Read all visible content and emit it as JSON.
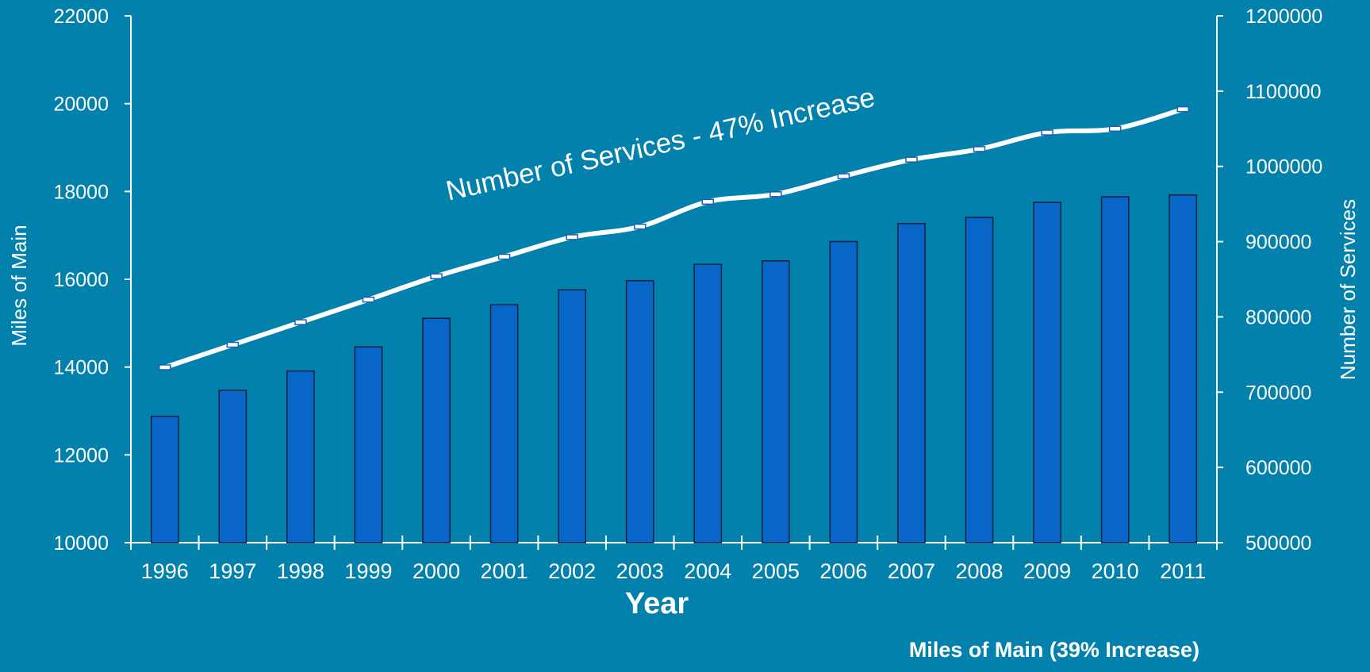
{
  "chart_data": {
    "type": "bar",
    "categories": [
      "1996",
      "1997",
      "1998",
      "1999",
      "2000",
      "2001",
      "2002",
      "2003",
      "2004",
      "2005",
      "2006",
      "2007",
      "2008",
      "2009",
      "2010",
      "2011"
    ],
    "series": [
      {
        "name": "Miles of Main (39% Increase)",
        "kind": "bar",
        "axis": "left",
        "values": [
          12880,
          13470,
          13910,
          14460,
          15110,
          15420,
          15760,
          15970,
          16340,
          16420,
          16860,
          17270,
          17410,
          17750,
          17880,
          17920
        ]
      },
      {
        "name": "Number of Services - 47% Increase",
        "kind": "line",
        "axis": "right",
        "values": [
          733000,
          763000,
          793000,
          823000,
          854000,
          880000,
          906000,
          920000,
          953000,
          963000,
          987000,
          1009000,
          1023000,
          1045000,
          1050000,
          1076000
        ]
      }
    ],
    "xlabel": "Year",
    "ylabel": "Miles of Main",
    "ylabel_right": "Number of Services",
    "ylim": [
      10000,
      22000
    ],
    "ylim_right": [
      500000,
      1200000
    ],
    "yticks": [
      "10000",
      "12000",
      "14000",
      "16000",
      "18000",
      "20000",
      "22000"
    ],
    "yticks_right": [
      "500000",
      "600000",
      "700000",
      "800000",
      "900000",
      "1000000",
      "1100000",
      "1200000"
    ],
    "annotation": "Number of Services - 47% Increase",
    "footer_label": "Miles of Main (39% Increase)",
    "grid": false,
    "colors": {
      "background": "#0381AD",
      "bar_fill": "#0766C8",
      "bar_stroke": "#0A1F3C",
      "line": "#FFFFFF",
      "marker_stroke": "#1E5DB8",
      "text": "#FFFFFF"
    }
  }
}
